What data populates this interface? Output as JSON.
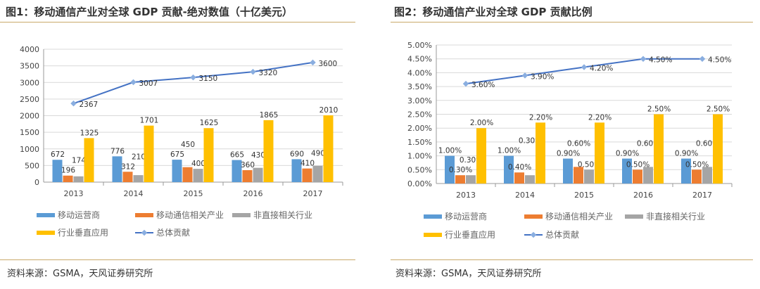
{
  "chart_data": [
    {
      "type": "bar",
      "title": "图1：移动通信产业对全球 GDP 贡献-绝对数值（十亿美元）",
      "categories": [
        "2013",
        "2014",
        "2015",
        "2016",
        "2017"
      ],
      "ylim": [
        0,
        4000
      ],
      "yticks": [
        "0",
        "500",
        "1000",
        "1500",
        "2000",
        "2500",
        "3000",
        "3500",
        "4000"
      ],
      "grid": true,
      "legend": "bottom",
      "series": [
        {
          "name": "移动运营商",
          "type": "bar",
          "color": "#5b9bd5",
          "values": [
            672,
            776,
            675,
            665,
            690
          ],
          "labels": [
            "672",
            "776",
            "675",
            "665",
            "690"
          ]
        },
        {
          "name": "移动通信相关产业",
          "type": "bar",
          "color": "#ed7d31",
          "values": [
            196,
            312,
            450,
            360,
            410
          ],
          "labels": [
            "196",
            "312",
            "450",
            "360",
            "410"
          ]
        },
        {
          "name": "非直接相关行业",
          "type": "bar",
          "color": "#a5a5a5",
          "values": [
            174,
            210,
            400,
            430,
            490
          ],
          "labels": [
            "174",
            "210",
            "400",
            "430",
            "490"
          ]
        },
        {
          "name": "行业垂直应用",
          "type": "bar",
          "color": "#ffc000",
          "values": [
            1325,
            1701,
            1625,
            1865,
            2010
          ],
          "labels": [
            "1325",
            "1701",
            "1625",
            "1865",
            "2010"
          ]
        },
        {
          "name": "总体贡献",
          "type": "line",
          "color": "#4472c4",
          "values": [
            2367,
            3007,
            3150,
            3320,
            3600
          ],
          "labels": [
            "2367",
            "3007",
            "3150",
            "3320",
            "3600"
          ]
        }
      ]
    },
    {
      "type": "bar",
      "title": "图2：移动通信产业对全球 GDP 贡献比例",
      "categories": [
        "2013",
        "2014",
        "2015",
        "2016",
        "2017"
      ],
      "ylim": [
        0,
        5
      ],
      "yticks": [
        "0.00%",
        "0.50%",
        "1.00%",
        "1.50%",
        "2.00%",
        "2.50%",
        "3.00%",
        "3.50%",
        "4.00%",
        "4.50%",
        "5.00%"
      ],
      "grid": true,
      "legend": "bottom",
      "series": [
        {
          "name": "移动运营商",
          "type": "bar",
          "color": "#5b9bd5",
          "values": [
            1.0,
            1.0,
            0.9,
            0.9,
            0.9
          ],
          "labels": [
            "1.00%",
            "1.00%",
            "0.90%",
            "0.90%",
            "0.90%"
          ]
        },
        {
          "name": "移动通信相关产业",
          "type": "bar",
          "color": "#ed7d31",
          "values": [
            0.3,
            0.4,
            0.6,
            0.5,
            0.5
          ],
          "labels": [
            "0.30%",
            "0.40%",
            "0.60%",
            "0.50%",
            "0.50%"
          ]
        },
        {
          "name": "非直接相关行业",
          "type": "bar",
          "color": "#a5a5a5",
          "values": [
            0.3,
            0.3,
            0.5,
            0.6,
            0.6
          ],
          "labels": [
            "0.30%",
            "0.30%",
            "0.50%",
            "0.60%",
            "0.60%"
          ]
        },
        {
          "name": "行业垂直应用",
          "type": "bar",
          "color": "#ffc000",
          "values": [
            2.0,
            2.2,
            2.2,
            2.5,
            2.5
          ],
          "labels": [
            "2.00%",
            "2.20%",
            "2.20%",
            "2.50%",
            "2.50%"
          ]
        },
        {
          "name": "总体贡献",
          "type": "line",
          "color": "#4472c4",
          "values": [
            3.6,
            3.9,
            4.2,
            4.5,
            4.5
          ],
          "labels": [
            "3.60%",
            "3.90%",
            "4.20%",
            "4.50%",
            "4.50%"
          ]
        }
      ]
    }
  ],
  "source": "资料来源：GSMA，天风证券研究所"
}
